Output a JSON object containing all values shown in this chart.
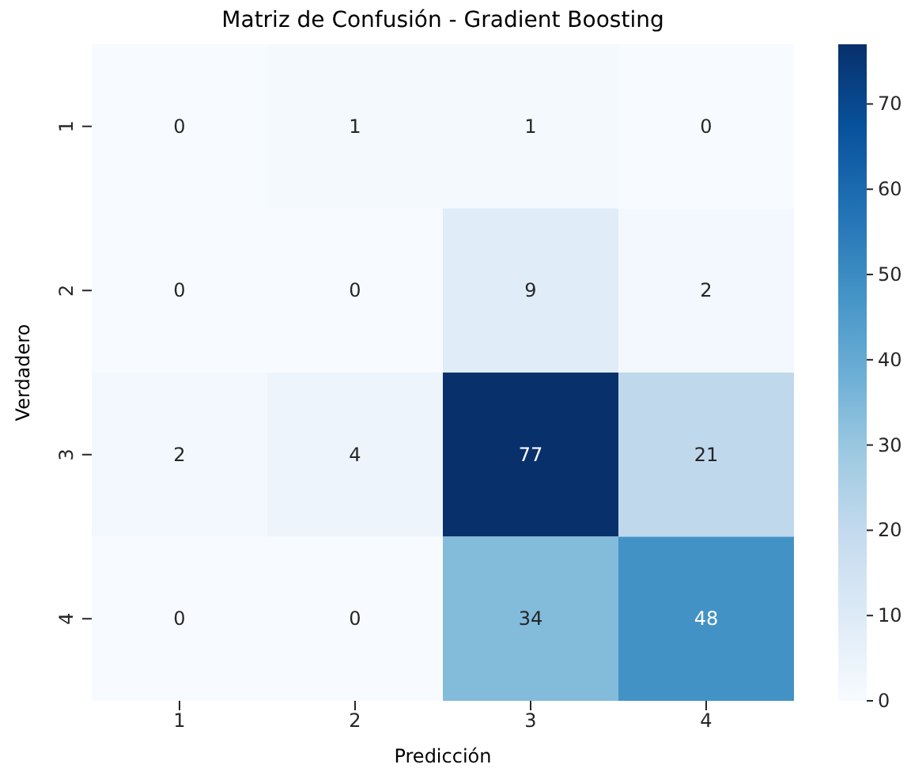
{
  "chart_data": {
    "type": "heatmap",
    "title": "Matriz de Confusión - Gradient Boosting",
    "xlabel": "Predicción",
    "ylabel": "Verdadero",
    "categories": [
      "1",
      "2",
      "3",
      "4"
    ],
    "y_categories": [
      "1",
      "2",
      "3",
      "4"
    ],
    "cells": [
      [
        0,
        1,
        1,
        0
      ],
      [
        0,
        0,
        9,
        2
      ],
      [
        2,
        4,
        77,
        21
      ],
      [
        0,
        0,
        34,
        48
      ]
    ],
    "data_labels": true,
    "clim": [
      0,
      77
    ],
    "cticks": [
      0,
      10,
      20,
      30,
      40,
      50,
      60,
      70
    ]
  }
}
